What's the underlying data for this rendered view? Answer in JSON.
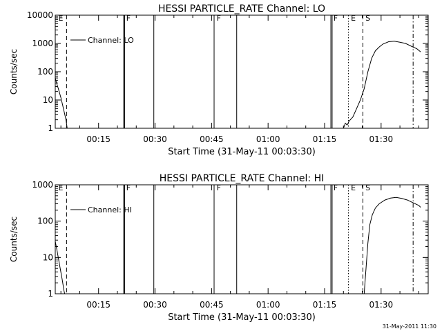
{
  "footer": {
    "timestamp": "31-May-2011 11:30"
  },
  "chart_data": [
    {
      "type": "line",
      "title": "HESSI PARTICLE_RATE Channel: LO",
      "xlabel": "Start Time (31-May-11 00:03:30)",
      "ylabel": "Counts/sec",
      "yscale": "log",
      "ylim": [
        1,
        10000
      ],
      "xlim": [
        "00:03:30",
        "01:42:30"
      ],
      "grid": false,
      "legend": {
        "position": "top-left",
        "entries": [
          "Channel: LO"
        ]
      },
      "x_ticks": [
        "00:15",
        "00:30",
        "00:45",
        "01:00",
        "01:15",
        "01:30"
      ],
      "y_ticks": [
        "1",
        "10",
        "100",
        "1000",
        "10000"
      ],
      "series": [
        {
          "name": "Channel: LO",
          "segments": [
            [
              {
                "x": "00:03:30",
                "y": 60
              },
              {
                "x": "00:03:50",
                "y": 40
              },
              {
                "x": "00:04:20",
                "y": 25
              },
              {
                "x": "00:05:00",
                "y": 12
              },
              {
                "x": "00:05:40",
                "y": 5
              },
              {
                "x": "00:06:20",
                "y": 2
              },
              {
                "x": "00:06:40",
                "y": 1
              }
            ],
            [
              {
                "x": "01:20:00",
                "y": 1
              },
              {
                "x": "01:20:30",
                "y": 1.5
              },
              {
                "x": "01:21:00",
                "y": 1.3
              },
              {
                "x": "01:21:30",
                "y": 1.8
              },
              {
                "x": "01:22:30",
                "y": 2.5
              },
              {
                "x": "01:23:30",
                "y": 5
              },
              {
                "x": "01:24:30",
                "y": 10
              },
              {
                "x": "01:25:30",
                "y": 25
              },
              {
                "x": "01:26:30",
                "y": 100
              },
              {
                "x": "01:27:30",
                "y": 300
              },
              {
                "x": "01:28:30",
                "y": 550
              },
              {
                "x": "01:29:30",
                "y": 750
              },
              {
                "x": "01:30:30",
                "y": 950
              },
              {
                "x": "01:32:00",
                "y": 1150
              },
              {
                "x": "01:33:30",
                "y": 1200
              },
              {
                "x": "01:35:00",
                "y": 1100
              },
              {
                "x": "01:36:30",
                "y": 1000
              },
              {
                "x": "01:38:00",
                "y": 800
              },
              {
                "x": "01:39:30",
                "y": 650
              },
              {
                "x": "01:40:30",
                "y": 500
              }
            ]
          ]
        }
      ],
      "event_lines": [
        {
          "x": "00:06:30",
          "style": "dashed",
          "label": ""
        },
        {
          "x": "00:21:40",
          "style": "solid",
          "label": ""
        },
        {
          "x": "00:21:55",
          "style": "solid",
          "label": ""
        },
        {
          "x": "00:29:40",
          "style": "solid",
          "label": ""
        },
        {
          "x": "00:45:40",
          "style": "solid",
          "label": ""
        },
        {
          "x": "00:51:40",
          "style": "solid",
          "label": ""
        },
        {
          "x": "01:16:40",
          "style": "solid",
          "label": ""
        },
        {
          "x": "01:17:00",
          "style": "solid",
          "label": ""
        },
        {
          "x": "01:21:20",
          "style": "dotted",
          "label": ""
        },
        {
          "x": "01:25:10",
          "style": "dashed",
          "label": ""
        },
        {
          "x": "01:38:30",
          "style": "dashdot",
          "label": ""
        }
      ],
      "annotations": [
        {
          "text": "E",
          "x": "00:04:20"
        },
        {
          "text": "F",
          "x": "00:22:20"
        },
        {
          "text": "F",
          "x": "00:46:20"
        },
        {
          "text": "F",
          "x": "01:17:20"
        },
        {
          "text": "E",
          "x": "01:22:00"
        },
        {
          "text": "S",
          "x": "01:25:50"
        }
      ]
    },
    {
      "type": "line",
      "title": "HESSI PARTICLE_RATE Channel: HI",
      "xlabel": "Start Time (31-May-11 00:03:30)",
      "ylabel": "Counts/sec",
      "yscale": "log",
      "ylim": [
        1,
        1000
      ],
      "xlim": [
        "00:03:30",
        "01:42:30"
      ],
      "grid": false,
      "legend": {
        "position": "top-left",
        "entries": [
          "Channel: HI"
        ]
      },
      "x_ticks": [
        "00:15",
        "00:30",
        "00:45",
        "01:00",
        "01:15",
        "01:30"
      ],
      "y_ticks": [
        "1",
        "10",
        "100",
        "1000"
      ],
      "series": [
        {
          "name": "Channel: HI",
          "segments": [
            [
              {
                "x": "00:03:30",
                "y": 28
              },
              {
                "x": "00:04:00",
                "y": 15
              },
              {
                "x": "00:04:40",
                "y": 6
              },
              {
                "x": "00:05:20",
                "y": 2.5
              },
              {
                "x": "00:05:50",
                "y": 1.2
              },
              {
                "x": "00:06:00",
                "y": 1
              }
            ],
            [
              {
                "x": "01:25:30",
                "y": 1
              },
              {
                "x": "01:26:00",
                "y": 5
              },
              {
                "x": "01:26:30",
                "y": 25
              },
              {
                "x": "01:27:00",
                "y": 80
              },
              {
                "x": "01:27:40",
                "y": 150
              },
              {
                "x": "01:28:30",
                "y": 230
              },
              {
                "x": "01:29:30",
                "y": 300
              },
              {
                "x": "01:31:00",
                "y": 380
              },
              {
                "x": "01:32:30",
                "y": 430
              },
              {
                "x": "01:34:00",
                "y": 450
              },
              {
                "x": "01:35:30",
                "y": 420
              },
              {
                "x": "01:37:00",
                "y": 380
              },
              {
                "x": "01:38:30",
                "y": 320
              },
              {
                "x": "01:40:00",
                "y": 270
              },
              {
                "x": "01:40:30",
                "y": 240
              }
            ]
          ]
        }
      ],
      "event_lines": [
        {
          "x": "00:06:30",
          "style": "dashed",
          "label": ""
        },
        {
          "x": "00:21:40",
          "style": "solid",
          "label": ""
        },
        {
          "x": "00:21:55",
          "style": "solid",
          "label": ""
        },
        {
          "x": "00:29:40",
          "style": "solid",
          "label": ""
        },
        {
          "x": "00:45:40",
          "style": "solid",
          "label": ""
        },
        {
          "x": "00:51:40",
          "style": "solid",
          "label": ""
        },
        {
          "x": "01:16:40",
          "style": "solid",
          "label": ""
        },
        {
          "x": "01:17:00",
          "style": "solid",
          "label": ""
        },
        {
          "x": "01:21:20",
          "style": "dotted",
          "label": ""
        },
        {
          "x": "01:25:10",
          "style": "dashed",
          "label": ""
        },
        {
          "x": "01:38:30",
          "style": "dashdot",
          "label": ""
        }
      ],
      "annotations": [
        {
          "text": "E",
          "x": "00:04:20"
        },
        {
          "text": "F",
          "x": "00:22:20"
        },
        {
          "text": "F",
          "x": "00:46:20"
        },
        {
          "text": "F",
          "x": "01:17:20"
        },
        {
          "text": "E",
          "x": "01:22:00"
        },
        {
          "text": "S",
          "x": "01:25:50"
        }
      ]
    }
  ]
}
